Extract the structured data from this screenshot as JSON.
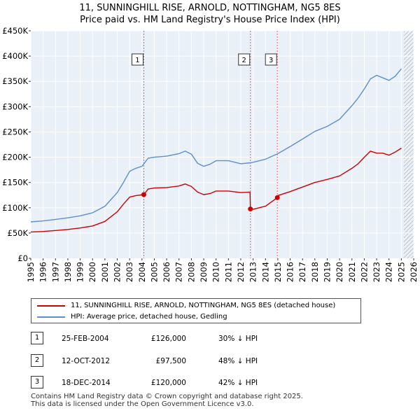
{
  "title_line1": "11, SUNNINGHILL RISE, ARNOLD, NOTTINGHAM, NG5 8ES",
  "title_line2": "Price paid vs. HM Land Registry's House Price Index (HPI)",
  "chart_data": {
    "type": "line",
    "title": "11, SUNNINGHILL RISE, ARNOLD, NOTTINGHAM, NG5 8ES — Price paid vs. HM Land Registry's House Price Index (HPI)",
    "xlabel": "",
    "ylabel": "",
    "xlim": [
      1995,
      2026
    ],
    "ylim": [
      0,
      450000
    ],
    "y_ticks": [
      0,
      50000,
      100000,
      150000,
      200000,
      250000,
      300000,
      350000,
      400000,
      450000
    ],
    "y_tick_labels": [
      "£0",
      "£50K",
      "£100K",
      "£150K",
      "£200K",
      "£250K",
      "£300K",
      "£350K",
      "£400K",
      "£450K"
    ],
    "x_ticks": [
      1995,
      1996,
      1997,
      1998,
      1999,
      2000,
      2001,
      2002,
      2003,
      2004,
      2005,
      2006,
      2007,
      2008,
      2009,
      2010,
      2011,
      2012,
      2013,
      2014,
      2015,
      2016,
      2017,
      2018,
      2019,
      2020,
      2021,
      2022,
      2023,
      2024,
      2025,
      2026
    ],
    "x_tick_labels": [
      "1995",
      "1996",
      "1997",
      "1998",
      "1999",
      "2000",
      "2001",
      "2002",
      "2003",
      "2004",
      "2005",
      "2006",
      "2007",
      "2008",
      "2009",
      "2010",
      "2011",
      "2012",
      "2013",
      "2014",
      "2015",
      "2016",
      "2017",
      "2018",
      "2019",
      "2020",
      "2021",
      "2022",
      "2023",
      "2024",
      "2025",
      "2026"
    ],
    "grid": true,
    "future_hatch_start": 2025.2,
    "series": [
      {
        "name": "HPI: Average price, detached house, Gedling",
        "color": "#5b8fd0",
        "x": [
          1995,
          1996,
          1997,
          1998,
          1999,
          2000,
          2001,
          2002,
          2002.5,
          2003,
          2003.5,
          2004,
          2004.5,
          2005,
          2006,
          2007,
          2007.5,
          2008,
          2008.5,
          2009,
          2009.5,
          2010,
          2011,
          2012,
          2012.8,
          2013,
          2014,
          2015,
          2016,
          2017,
          2018,
          2019,
          2020,
          2021,
          2021.5,
          2022,
          2022.5,
          2023,
          2023.5,
          2024,
          2024.5,
          2025
        ],
        "y": [
          72000,
          74000,
          77000,
          80000,
          84000,
          90000,
          103000,
          130000,
          150000,
          172000,
          178000,
          182000,
          198000,
          200000,
          202000,
          207000,
          212000,
          206000,
          188000,
          182000,
          186000,
          193000,
          193000,
          187000,
          189000,
          190000,
          196000,
          207000,
          221000,
          236000,
          251000,
          261000,
          275000,
          302000,
          317000,
          335000,
          355000,
          362000,
          357000,
          352000,
          360000,
          375000
        ]
      },
      {
        "name": "11, SUNNINGHILL RISE, ARNOLD, NOTTINGHAM, NG5 8ES (detached house)",
        "color": "#cc0000",
        "x": [
          1995,
          1996,
          1997,
          1998,
          1999,
          2000,
          2001,
          2002,
          2002.5,
          2003,
          2003.5,
          2004.15,
          2004.5,
          2005,
          2006,
          2007,
          2007.5,
          2008,
          2008.5,
          2009,
          2009.5,
          2010,
          2011,
          2012,
          2012.75,
          2012.78,
          2013,
          2014,
          2014.96,
          2015,
          2016,
          2017,
          2018,
          2019,
          2020,
          2021,
          2021.5,
          2022,
          2022.5,
          2023,
          2023.5,
          2024,
          2024.5,
          2025
        ],
        "y": [
          52000,
          53000,
          55000,
          57000,
          60000,
          64000,
          73000,
          92000,
          107000,
          121000,
          124000,
          126000,
          137000,
          139000,
          140000,
          143000,
          147000,
          142000,
          131000,
          126000,
          128000,
          133000,
          133000,
          130000,
          131000,
          97500,
          97000,
          103000,
          120000,
          124000,
          132000,
          141000,
          150000,
          156000,
          163000,
          178000,
          187000,
          200000,
          212000,
          208000,
          208000,
          204000,
          210000,
          218000
        ]
      }
    ],
    "transactions": [
      {
        "label": "1",
        "x": 2004.15,
        "price": 126000
      },
      {
        "label": "2",
        "x": 2012.78,
        "price": 97500
      },
      {
        "label": "3",
        "x": 2014.96,
        "price": 120000
      }
    ]
  },
  "legend": {
    "property_label": "11, SUNNINGHILL RISE, ARNOLD, NOTTINGHAM, NG5 8ES (detached house)",
    "hpi_label": "HPI: Average price, detached house, Gedling"
  },
  "transactions_table": [
    {
      "num": "1",
      "date": "25-FEB-2004",
      "price": "£126,000",
      "hpi": "30% ↓ HPI"
    },
    {
      "num": "2",
      "date": "12-OCT-2012",
      "price": "£97,500",
      "hpi": "48% ↓ HPI"
    },
    {
      "num": "3",
      "date": "18-DEC-2014",
      "price": "£120,000",
      "hpi": "42% ↓ HPI"
    }
  ],
  "footer_line1": "Contains HM Land Registry data © Crown copyright and database right 2025.",
  "footer_line2": "This data is licensed under the Open Government Licence v3.0."
}
